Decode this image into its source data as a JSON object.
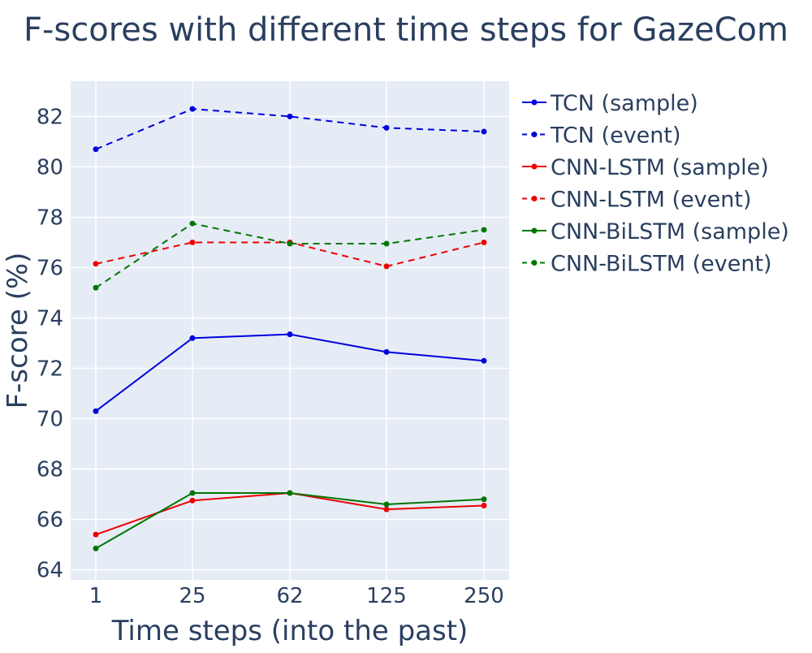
{
  "chart_data": {
    "type": "line",
    "title": "F-scores with different time steps for GazeCom",
    "xlabel": "Time steps (into the past)",
    "ylabel": "F-score (%)",
    "categories": [
      "1",
      "25",
      "62",
      "125",
      "250"
    ],
    "ylim": [
      63.6,
      83.4
    ],
    "yticks": [
      64,
      66,
      68,
      70,
      72,
      74,
      76,
      78,
      80,
      82
    ],
    "grid": true,
    "legend_position": "right",
    "series": [
      {
        "name": "TCN (sample)",
        "color": "#0000dd",
        "dashed": false,
        "values": [
          70.3,
          73.2,
          73.35,
          72.65,
          72.3
        ]
      },
      {
        "name": "TCN (event)",
        "color": "#0000dd",
        "dashed": true,
        "values": [
          80.7,
          82.3,
          82.0,
          81.55,
          81.4
        ]
      },
      {
        "name": "CNN-LSTM (sample)",
        "color": "#ee0000",
        "dashed": false,
        "values": [
          65.4,
          66.75,
          67.05,
          66.4,
          66.55
        ]
      },
      {
        "name": "CNN-LSTM (event)",
        "color": "#ee0000",
        "dashed": true,
        "values": [
          76.15,
          77.0,
          77.0,
          76.05,
          77.0
        ]
      },
      {
        "name": "CNN-BiLSTM (sample)",
        "color": "#007700",
        "dashed": false,
        "values": [
          64.85,
          67.05,
          67.05,
          66.6,
          66.8
        ]
      },
      {
        "name": "CNN-BiLSTM (event)",
        "color": "#007700",
        "dashed": true,
        "values": [
          75.2,
          77.75,
          76.95,
          76.95,
          77.5
        ]
      }
    ]
  }
}
